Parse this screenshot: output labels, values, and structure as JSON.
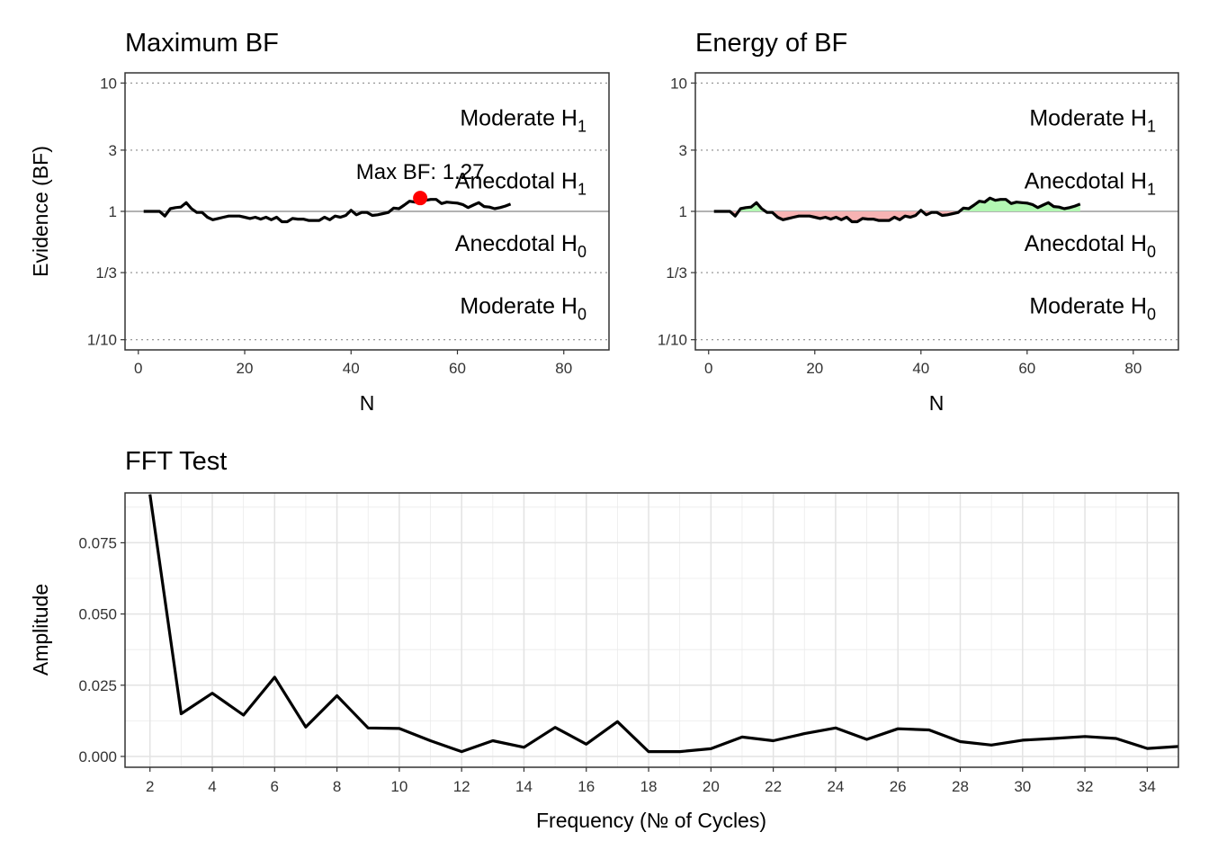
{
  "chart_data": [
    {
      "type": "line",
      "title": "Maximum BF",
      "xlabel": "N",
      "ylabel": "Evidence (BF)",
      "scale_y": "log",
      "xlim": [
        -2.5,
        88.5
      ],
      "ylim": [
        0.0833,
        12
      ],
      "x_ticks": [
        0,
        20,
        40,
        60,
        80
      ],
      "y_ticks": [
        {
          "value": 10,
          "label": "10"
        },
        {
          "value": 3,
          "label": "3"
        },
        {
          "value": 1,
          "label": "1"
        },
        {
          "value": 0.3333,
          "label": "1/3"
        },
        {
          "value": 0.1,
          "label": "1/10"
        }
      ],
      "region_labels": [
        {
          "base": "Moderate H",
          "sub": "1",
          "y": 5.4
        },
        {
          "base": "Anecdotal H",
          "sub": "1",
          "y": 1.75
        },
        {
          "base": "Anecdotal H",
          "sub": "0",
          "y": 0.57
        },
        {
          "base": "Moderate H",
          "sub": "0",
          "y": 0.185
        }
      ],
      "annotation": {
        "text": "Max BF: 1.27",
        "x": 53,
        "y": 1.27
      },
      "series": [
        {
          "name": "",
          "x": [
            1,
            2,
            3,
            4,
            5,
            6,
            7,
            8,
            9,
            10,
            11,
            12,
            13,
            14,
            15,
            16,
            17,
            18,
            19,
            20,
            21,
            22,
            23,
            24,
            25,
            26,
            27,
            28,
            29,
            30,
            31,
            32,
            33,
            34,
            35,
            36,
            37,
            38,
            39,
            40,
            41,
            42,
            43,
            44,
            45,
            46,
            47,
            48,
            49,
            50,
            51,
            52,
            53,
            54,
            55,
            56,
            57,
            58,
            59,
            60,
            61,
            62,
            63,
            64,
            65,
            66,
            67,
            68,
            69,
            70
          ],
          "y": [
            1.0,
            1.0,
            1.0,
            1.0,
            0.92,
            1.05,
            1.07,
            1.08,
            1.17,
            1.05,
            0.98,
            0.98,
            0.9,
            0.86,
            0.88,
            0.9,
            0.92,
            0.92,
            0.92,
            0.9,
            0.88,
            0.9,
            0.87,
            0.9,
            0.86,
            0.9,
            0.83,
            0.83,
            0.88,
            0.87,
            0.87,
            0.85,
            0.85,
            0.85,
            0.9,
            0.86,
            0.92,
            0.9,
            0.93,
            1.02,
            0.94,
            0.98,
            0.98,
            0.93,
            0.94,
            0.96,
            0.98,
            1.06,
            1.05,
            1.12,
            1.2,
            1.18,
            1.27,
            1.22,
            1.24,
            1.24,
            1.15,
            1.18,
            1.17,
            1.16,
            1.13,
            1.07,
            1.12,
            1.17,
            1.09,
            1.08,
            1.05,
            1.07,
            1.1,
            1.14
          ]
        }
      ]
    },
    {
      "type": "area",
      "title": "Energy of BF",
      "xlabel": "N",
      "ylabel": "",
      "scale_y": "log",
      "xlim": [
        -2.5,
        88.5
      ],
      "ylim": [
        0.0833,
        12
      ],
      "x_ticks": [
        0,
        20,
        40,
        60,
        80
      ],
      "y_ticks": [
        {
          "value": 10,
          "label": "10"
        },
        {
          "value": 3,
          "label": "3"
        },
        {
          "value": 1,
          "label": "1"
        },
        {
          "value": 0.3333,
          "label": "1/3"
        },
        {
          "value": 0.1,
          "label": "1/10"
        }
      ],
      "region_labels": [
        {
          "base": "Moderate H",
          "sub": "1",
          "y": 5.4
        },
        {
          "base": "Anecdotal H",
          "sub": "1",
          "y": 1.75
        },
        {
          "base": "Anecdotal H",
          "sub": "0",
          "y": 0.57
        },
        {
          "base": "Moderate H",
          "sub": "0",
          "y": 0.185
        }
      ],
      "fill_above": "#b3f7b3",
      "fill_below": "#f7b3b3",
      "series": [
        {
          "name": "",
          "x": [
            1,
            2,
            3,
            4,
            5,
            6,
            7,
            8,
            9,
            10,
            11,
            12,
            13,
            14,
            15,
            16,
            17,
            18,
            19,
            20,
            21,
            22,
            23,
            24,
            25,
            26,
            27,
            28,
            29,
            30,
            31,
            32,
            33,
            34,
            35,
            36,
            37,
            38,
            39,
            40,
            41,
            42,
            43,
            44,
            45,
            46,
            47,
            48,
            49,
            50,
            51,
            52,
            53,
            54,
            55,
            56,
            57,
            58,
            59,
            60,
            61,
            62,
            63,
            64,
            65,
            66,
            67,
            68,
            69,
            70
          ],
          "y": [
            1.0,
            1.0,
            1.0,
            1.0,
            0.92,
            1.05,
            1.07,
            1.08,
            1.17,
            1.05,
            0.98,
            0.98,
            0.9,
            0.86,
            0.88,
            0.9,
            0.92,
            0.92,
            0.92,
            0.9,
            0.88,
            0.9,
            0.87,
            0.9,
            0.86,
            0.9,
            0.83,
            0.83,
            0.88,
            0.87,
            0.87,
            0.85,
            0.85,
            0.85,
            0.9,
            0.86,
            0.92,
            0.9,
            0.93,
            1.02,
            0.94,
            0.98,
            0.98,
            0.93,
            0.94,
            0.96,
            0.98,
            1.06,
            1.05,
            1.12,
            1.2,
            1.18,
            1.27,
            1.22,
            1.24,
            1.24,
            1.15,
            1.18,
            1.17,
            1.16,
            1.13,
            1.07,
            1.12,
            1.17,
            1.09,
            1.08,
            1.05,
            1.07,
            1.1,
            1.14
          ]
        }
      ]
    },
    {
      "type": "line",
      "title": "FFT Test",
      "xlabel": "Frequency (№ of Cycles)",
      "ylabel": "Amplitude",
      "xlim": [
        1.2,
        35.0
      ],
      "ylim": [
        -0.0038,
        0.0925
      ],
      "x_ticks": [
        2,
        4,
        6,
        8,
        10,
        12,
        14,
        16,
        18,
        20,
        22,
        24,
        26,
        28,
        30,
        32,
        34
      ],
      "y_ticks": [
        {
          "value": 0.0,
          "label": "0.000"
        },
        {
          "value": 0.025,
          "label": "0.025"
        },
        {
          "value": 0.05,
          "label": "0.050"
        },
        {
          "value": 0.075,
          "label": "0.075"
        }
      ],
      "grid": true,
      "series": [
        {
          "name": "",
          "x": [
            2,
            3,
            4,
            5,
            6,
            7,
            8,
            9,
            10,
            11,
            12,
            13,
            14,
            15,
            16,
            17,
            18,
            19,
            20,
            21,
            22,
            23,
            24,
            25,
            26,
            27,
            28,
            29,
            30,
            31,
            32,
            33,
            34,
            35
          ],
          "y": [
            0.092,
            0.015,
            0.0222,
            0.0145,
            0.0278,
            0.0103,
            0.0213,
            0.01,
            0.0098,
            0.0055,
            0.0017,
            0.0055,
            0.0032,
            0.0102,
            0.0043,
            0.0122,
            0.0017,
            0.0017,
            0.0027,
            0.0068,
            0.0055,
            0.008,
            0.01,
            0.006,
            0.0097,
            0.0093,
            0.0052,
            0.004,
            0.0057,
            0.0063,
            0.007,
            0.0063,
            0.0028,
            0.0035
          ]
        }
      ]
    }
  ],
  "colors": {
    "line": "#000000",
    "max_point": "#ff0000",
    "fill_above": "#b3f7b3",
    "fill_below": "#f7b3b3",
    "dotted_grid": "#8c8c8c",
    "ref_line": "#999999",
    "minor_grid": "#ebebeb",
    "major_grid": "#e3e3e3"
  }
}
